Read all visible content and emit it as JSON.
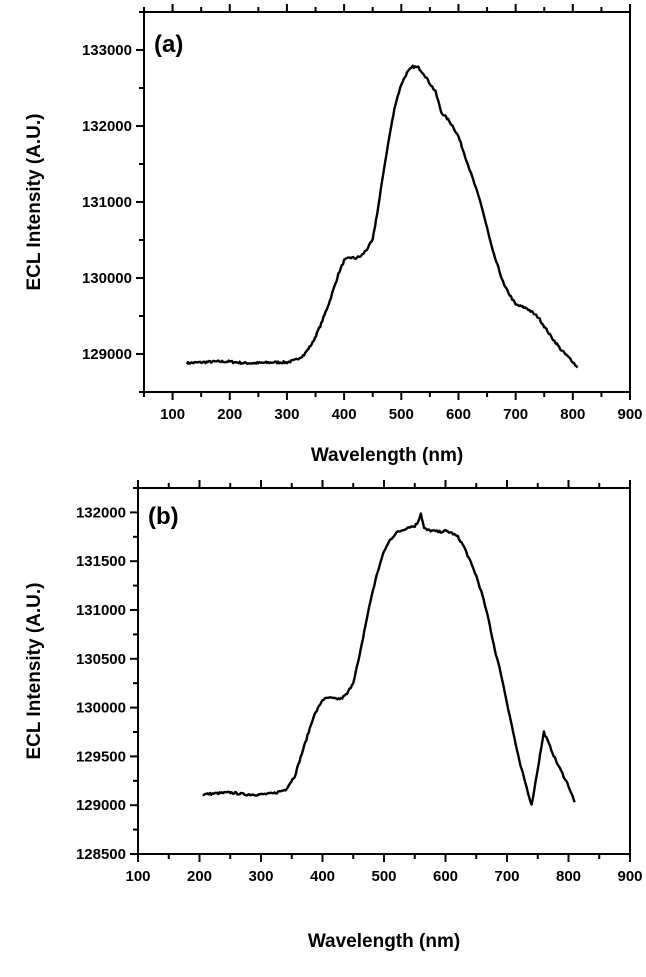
{
  "chart_data": [
    {
      "type": "line",
      "panel_label": "(a)",
      "xlabel": "Wavelength  (nm)",
      "ylabel": "ECL Intensity  (A.U.)",
      "xlim": [
        50,
        900
      ],
      "ylim": [
        128500,
        133500
      ],
      "xticks": [
        100,
        200,
        300,
        400,
        500,
        600,
        700,
        800,
        900
      ],
      "yticks": [
        129000,
        130000,
        131000,
        132000,
        133000
      ],
      "grid": false,
      "series": [
        {
          "x": [
            125,
            150,
            175,
            200,
            225,
            250,
            275,
            300,
            315,
            330,
            345,
            360,
            375,
            390,
            400,
            410,
            420,
            430,
            440,
            450,
            460,
            470,
            480,
            490,
            500,
            510,
            520,
            530,
            540,
            550,
            560,
            570,
            580,
            590,
            600,
            620,
            640,
            660,
            680,
            700,
            720,
            740,
            760,
            780,
            800,
            808
          ],
          "y": [
            128880,
            128890,
            128900,
            128900,
            128880,
            128880,
            128890,
            128890,
            128920,
            128990,
            129150,
            129400,
            129700,
            130050,
            130230,
            130270,
            130260,
            130290,
            130380,
            130500,
            130950,
            131450,
            131900,
            132300,
            132550,
            132700,
            132780,
            132770,
            132680,
            132560,
            132450,
            132180,
            132100,
            132000,
            131860,
            131420,
            130960,
            130350,
            129900,
            129650,
            129600,
            129480,
            129250,
            129050,
            128900,
            128820
          ]
        }
      ]
    },
    {
      "type": "line",
      "panel_label": "(b)",
      "xlabel": "Wavelength  (nm)",
      "ylabel": "ECL Intensity  (A.U.)",
      "xlim": [
        100,
        900
      ],
      "ylim": [
        128500,
        132250
      ],
      "xticks": [
        100,
        200,
        300,
        400,
        500,
        600,
        700,
        800,
        900
      ],
      "yticks": [
        128500,
        129000,
        129500,
        130000,
        130500,
        131000,
        131500,
        132000
      ],
      "grid": false,
      "series": [
        {
          "x": [
            205,
            225,
            250,
            275,
            300,
            320,
            340,
            355,
            370,
            385,
            400,
            410,
            420,
            430,
            440,
            450,
            460,
            470,
            480,
            490,
            500,
            510,
            520,
            530,
            540,
            550,
            555,
            560,
            565,
            570,
            580,
            590,
            600,
            610,
            620,
            630,
            640,
            650,
            660,
            670,
            680,
            690,
            700,
            710,
            720,
            740,
            760,
            780,
            800,
            810
          ],
          "y": [
            129110,
            129120,
            129130,
            129110,
            129110,
            129120,
            129160,
            129300,
            129600,
            129900,
            130080,
            130100,
            130090,
            130090,
            130140,
            130260,
            130520,
            130850,
            131150,
            131400,
            131600,
            131720,
            131790,
            131820,
            131850,
            131860,
            131900,
            131990,
            131840,
            131820,
            131810,
            131800,
            131810,
            131790,
            131750,
            131650,
            131500,
            131350,
            131150,
            130900,
            130600,
            130350,
            130050,
            129750,
            129450,
            129000,
            129750,
            129450,
            129200,
            129030
          ]
        }
      ]
    }
  ]
}
